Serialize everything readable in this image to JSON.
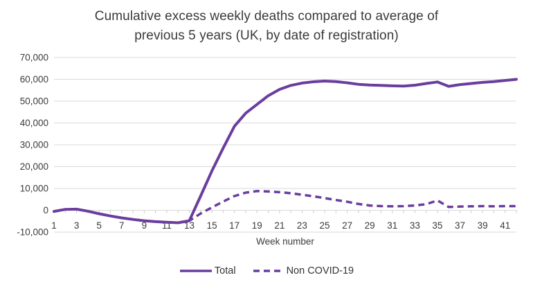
{
  "colors": {
    "series_purple": "#6A3D9E",
    "gridline": "#D9D9D9",
    "axis_tick": "#C9C9C9",
    "text": "#3A3A3A"
  },
  "chart_data": {
    "type": "line",
    "title": "Cumulative excess weekly deaths compared to average of previous 5 years (UK, by date of registration)",
    "title_lines": [
      "Cumulative excess weekly deaths compared to average of",
      "previous 5 years (UK, by date of registration)"
    ],
    "xlabel": "Week number",
    "ylabel": "",
    "grid": "horizontal",
    "legend_position": "bottom",
    "ylim": [
      -10000,
      70000
    ],
    "x": [
      1,
      2,
      3,
      4,
      5,
      6,
      7,
      8,
      9,
      10,
      11,
      12,
      13,
      14,
      15,
      16,
      17,
      18,
      19,
      20,
      21,
      22,
      23,
      24,
      25,
      26,
      27,
      28,
      29,
      30,
      31,
      32,
      33,
      34,
      35,
      36,
      37,
      38,
      39,
      40,
      41,
      42
    ],
    "xticks": [
      1,
      3,
      5,
      7,
      9,
      11,
      13,
      15,
      17,
      19,
      21,
      23,
      25,
      27,
      29,
      31,
      33,
      35,
      37,
      39,
      41
    ],
    "yticks": [
      {
        "value": -10000,
        "label": "-10,000"
      },
      {
        "value": 0,
        "label": "0"
      },
      {
        "value": 10000,
        "label": "10,000"
      },
      {
        "value": 20000,
        "label": "20,000"
      },
      {
        "value": 30000,
        "label": "30,000"
      },
      {
        "value": 40000,
        "label": "40,000"
      },
      {
        "value": 50000,
        "label": "50,000"
      },
      {
        "value": 60000,
        "label": "60,000"
      },
      {
        "value": 70000,
        "label": "70,000"
      }
    ],
    "series": [
      {
        "name": "Total",
        "style": "solid",
        "values": [
          -500,
          400,
          500,
          -400,
          -1600,
          -2600,
          -3500,
          -4200,
          -4800,
          -5200,
          -5500,
          -5700,
          -4800,
          6500,
          18000,
          28500,
          38500,
          44500,
          48500,
          52500,
          55400,
          57200,
          58300,
          58900,
          59200,
          59000,
          58400,
          57700,
          57400,
          57200,
          57000,
          56900,
          57300,
          58100,
          58800,
          56800,
          57600,
          58100,
          58600,
          59000,
          59500,
          60000
        ]
      },
      {
        "name": "Non COVID-19",
        "style": "dashed",
        "values": [
          -500,
          400,
          500,
          -400,
          -1600,
          -2600,
          -3500,
          -4200,
          -4800,
          -5200,
          -5500,
          -5700,
          -4800,
          -1500,
          1300,
          4000,
          6500,
          8100,
          8800,
          8600,
          8300,
          7800,
          7100,
          6400,
          5600,
          4700,
          3900,
          2900,
          2200,
          1900,
          1800,
          1900,
          2200,
          2800,
          4500,
          1500,
          1700,
          1800,
          1900,
          1800,
          1900,
          1900
        ]
      }
    ]
  }
}
